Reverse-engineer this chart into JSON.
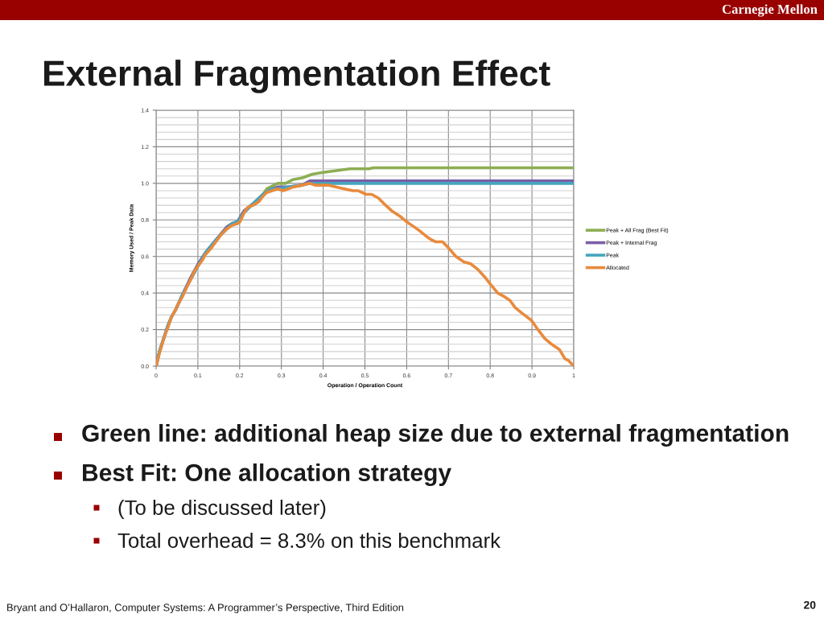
{
  "chart_data": {
    "type": "line",
    "title": "External Fragmentation Effect",
    "xlabel": "Operation / Operation Count",
    "ylabel": "Memory Used / Peak Data",
    "xlim": [
      0,
      1
    ],
    "xticks": [
      {
        "value": 0,
        "label": "0"
      },
      0.1,
      0.2,
      0.3,
      0.4,
      0.5,
      0.6,
      0.7,
      0.8,
      0.9,
      {
        "value": 1,
        "label": "1"
      }
    ],
    "ylim": [
      0,
      1.4
    ],
    "yticks": [
      {
        "value": 0,
        "label": "0.0"
      },
      {
        "value": 0.04,
        "label": null
      },
      {
        "value": 0.08,
        "label": null
      },
      {
        "value": 0.12,
        "label": null
      },
      {
        "value": 0.16,
        "label": null
      },
      0.2,
      {
        "value": 0.24,
        "label": null
      },
      {
        "value": 0.28,
        "label": null
      },
      {
        "value": 0.32,
        "label": null
      },
      {
        "value": 0.36,
        "label": null
      },
      0.4,
      {
        "value": 0.44,
        "label": null
      },
      {
        "value": 0.48,
        "label": null
      },
      {
        "value": 0.52,
        "label": null
      },
      {
        "value": 0.56,
        "label": null
      },
      0.6,
      {
        "value": 0.64,
        "label": null
      },
      {
        "value": 0.68,
        "label": null
      },
      {
        "value": 0.72,
        "label": null
      },
      {
        "value": 0.76,
        "label": null
      },
      0.8,
      {
        "value": 0.84,
        "label": null
      },
      {
        "value": 0.88,
        "label": null
      },
      {
        "value": 0.92,
        "label": null
      },
      {
        "value": 0.96,
        "label": null
      },
      {
        "value": 1,
        "label": "1.0"
      },
      {
        "value": 1.04,
        "label": null
      },
      {
        "value": 1.08,
        "label": null
      },
      {
        "value": 1.12,
        "label": null
      },
      {
        "value": 1.16,
        "label": null
      },
      1.2,
      {
        "value": 1.24,
        "label": null
      },
      {
        "value": 1.28,
        "label": null
      },
      {
        "value": 1.32,
        "label": null
      },
      {
        "value": 1.36,
        "label": null
      },
      1.4
    ],
    "grid": true,
    "legend": "right",
    "series": [
      {
        "name": "Peak + All Frag (Best Fit)",
        "color": "#8cae52",
        "x": [
          0,
          0.008,
          0.018,
          0.028,
          0.037,
          0.047,
          0.063,
          0.082,
          0.101,
          0.118,
          0.143,
          0.169,
          0.182,
          0.195,
          0.211,
          0.233,
          0.256,
          0.265,
          0.291,
          0.31,
          0.327,
          0.35,
          0.374,
          0.4,
          0.432,
          0.464,
          0.51,
          0.52,
          1
        ],
        "values": [
          0,
          0.08,
          0.15,
          0.22,
          0.27,
          0.31,
          0.39,
          0.48,
          0.56,
          0.62,
          0.69,
          0.76,
          0.78,
          0.79,
          0.85,
          0.89,
          0.94,
          0.97,
          1.0,
          1.0,
          1.02,
          1.03,
          1.05,
          1.06,
          1.07,
          1.08,
          1.08,
          1.085,
          1.085
        ]
      },
      {
        "name": "Peak + Internal Frag",
        "color": "#7b5ea7",
        "x": [
          0,
          0.008,
          0.018,
          0.028,
          0.037,
          0.047,
          0.063,
          0.082,
          0.101,
          0.118,
          0.143,
          0.169,
          0.182,
          0.195,
          0.211,
          0.233,
          0.256,
          0.278,
          0.291,
          0.317,
          0.349,
          0.368,
          1
        ],
        "values": [
          0,
          0.08,
          0.15,
          0.22,
          0.27,
          0.31,
          0.39,
          0.48,
          0.56,
          0.62,
          0.69,
          0.76,
          0.78,
          0.79,
          0.85,
          0.89,
          0.94,
          0.97,
          0.98,
          0.98,
          0.99,
          1.013,
          1.013
        ]
      },
      {
        "name": "Peak",
        "color": "#45a5bd",
        "x": [
          0,
          0.008,
          0.018,
          0.028,
          0.037,
          0.047,
          0.063,
          0.082,
          0.101,
          0.118,
          0.143,
          0.169,
          0.182,
          0.195,
          0.211,
          0.233,
          0.256,
          0.278,
          0.291,
          0.317,
          0.349,
          0.368,
          1
        ],
        "values": [
          0,
          0.08,
          0.15,
          0.22,
          0.27,
          0.31,
          0.39,
          0.47,
          0.55,
          0.62,
          0.69,
          0.75,
          0.78,
          0.79,
          0.84,
          0.89,
          0.94,
          0.97,
          0.97,
          0.98,
          0.99,
          1.0,
          1.0
        ]
      },
      {
        "name": "Allocated",
        "color": "#e88a3d",
        "x": [
          0,
          0.008,
          0.018,
          0.028,
          0.037,
          0.047,
          0.053,
          0.063,
          0.073,
          0.082,
          0.092,
          0.101,
          0.111,
          0.118,
          0.13,
          0.143,
          0.156,
          0.169,
          0.182,
          0.195,
          0.201,
          0.211,
          0.22,
          0.233,
          0.246,
          0.256,
          0.265,
          0.278,
          0.291,
          0.304,
          0.317,
          0.329,
          0.349,
          0.368,
          0.381,
          0.397,
          0.413,
          0.432,
          0.451,
          0.471,
          0.483,
          0.503,
          0.516,
          0.532,
          0.545,
          0.564,
          0.584,
          0.6,
          0.619,
          0.631,
          0.647,
          0.66,
          0.67,
          0.686,
          0.699,
          0.718,
          0.737,
          0.753,
          0.77,
          0.786,
          0.8,
          0.818,
          0.834,
          0.847,
          0.86,
          0.876,
          0.899,
          0.911,
          0.931,
          0.947,
          0.966,
          0.979,
          0.988,
          1
        ],
        "values": [
          0,
          0.07,
          0.15,
          0.21,
          0.27,
          0.31,
          0.34,
          0.38,
          0.43,
          0.47,
          0.52,
          0.55,
          0.58,
          0.61,
          0.64,
          0.68,
          0.72,
          0.75,
          0.77,
          0.78,
          0.79,
          0.84,
          0.87,
          0.88,
          0.9,
          0.93,
          0.95,
          0.96,
          0.97,
          0.96,
          0.97,
          0.98,
          0.99,
          1.0,
          0.99,
          0.99,
          0.99,
          0.98,
          0.97,
          0.96,
          0.96,
          0.94,
          0.94,
          0.92,
          0.89,
          0.85,
          0.82,
          0.79,
          0.76,
          0.74,
          0.71,
          0.69,
          0.68,
          0.68,
          0.65,
          0.6,
          0.57,
          0.56,
          0.53,
          0.49,
          0.45,
          0.4,
          0.38,
          0.36,
          0.32,
          0.29,
          0.25,
          0.21,
          0.15,
          0.12,
          0.09,
          0.04,
          0.03,
          0
        ]
      }
    ],
    "annotations": [
      "Carnegie Mellon",
      "Green line: additional heap size due to external fragmentation",
      "Best Fit: One allocation strategy",
      "(To be discussed later)",
      "Total overhead = 8.3% on this benchmark",
      "Bryant and O’Hallaron, Computer Systems: A Programmer’s Perspective, Third Edition",
      "20"
    ]
  }
}
